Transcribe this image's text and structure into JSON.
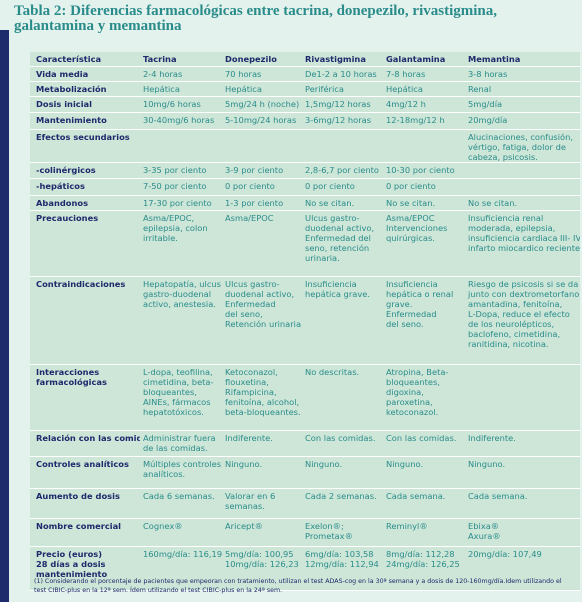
{
  "title": "Tabla 2: Diferencias farmacológicas entre tacrina, donepezilo, rivastigmina, galantamina y memantina",
  "table": {
    "header": [
      "Característica",
      "Tacrina",
      "Donepezilo",
      "Rivastigmina",
      "Galantamina",
      "Memantina"
    ],
    "rows": [
      [
        [
          "Vida media"
        ],
        [
          "2-4 horas"
        ],
        [
          "70 horas"
        ],
        [
          "De1-2 a 10 horas"
        ],
        [
          "7-8 horas"
        ],
        [
          "3-8 horas"
        ]
      ],
      [
        [
          "Metabolización"
        ],
        [
          "Hepática"
        ],
        [
          "Hepática"
        ],
        [
          "Periférica"
        ],
        [
          "Hepática"
        ],
        [
          "Renal"
        ]
      ],
      [
        [
          "Dosis inicial"
        ],
        [
          "10mg/6 horas"
        ],
        [
          "5mg/24 h (noche)"
        ],
        [
          "1,5mg/12 horas"
        ],
        [
          "4mg/12 h"
        ],
        [
          "5mg/día"
        ]
      ],
      [
        [
          "Mantenimiento"
        ],
        [
          "30-40mg/6 horas"
        ],
        [
          "5-10mg/24 horas"
        ],
        [
          "3-6mg/12 horas"
        ],
        [
          "12-18mg/12 h"
        ],
        [
          "20mg/día"
        ]
      ],
      [
        [
          "Efectos secundarios"
        ],
        [],
        [],
        [],
        [],
        [
          "Alucinaciones, confusión,",
          "vértigo, fatiga, dolor de",
          "cabeza, psicosis."
        ]
      ],
      [
        [
          "-colinérgicos"
        ],
        [
          "3-35 por ciento"
        ],
        [
          "3-9 por ciento"
        ],
        [
          "2,8-6,7 por ciento"
        ],
        [
          "10-30 por ciento"
        ],
        []
      ],
      [
        [
          "-hepáticos"
        ],
        [
          "7-50 por ciento"
        ],
        [
          "0 por ciento"
        ],
        [
          "0 por ciento"
        ],
        [
          "0 por ciento"
        ],
        []
      ],
      [
        [
          "Abandonos"
        ],
        [
          "17-30 por ciento"
        ],
        [
          "1-3 por ciento"
        ],
        [
          "No se citan."
        ],
        [
          "No se citan."
        ],
        [
          "No se citan."
        ]
      ],
      [
        [
          "Precauciones"
        ],
        [
          "Asma/EPOC,",
          "epilepsia, colon",
          "irritable."
        ],
        [
          "Asma/EPOC"
        ],
        [
          "Ulcus gastro-",
          "duodenal activo,",
          "Enfermedad del",
          "seno, retención",
          "urinaria."
        ],
        [
          "Asma/EPOC",
          "Intervenciones",
          "quirúrgicas."
        ],
        [
          "Insuficiencia renal",
          "moderada, epilepsia,",
          "insuficiencia cardiaca III- IV,",
          "infarto miocardico reciente."
        ]
      ],
      [
        [
          "Contraindicaciones"
        ],
        [
          "Hepatopatía, ulcus",
          "gastro-duodenal",
          "activo, anestesia."
        ],
        [
          "Ulcus gastro-",
          "duodenal activo,",
          "Enfermedad",
          "del seno,",
          "Retención urinaria."
        ],
        [
          "Insuficiencia",
          "hepática grave."
        ],
        [
          "Insuficiencia",
          "hepática o renal",
          "grave.",
          "Enfermedad",
          "del seno."
        ],
        [
          "Riesgo de psicosis si se da",
          "junto con dextrometorfano,",
          "amantadina, fenitoína,",
          "L-Dopa, reduce el efecto",
          "de los neurolépticos,",
          "baclofeno, cimetidina,",
          "ranitidina, nicotina."
        ]
      ],
      [
        [
          "Interacciones",
          "farmacológicas"
        ],
        [
          "L-dopa, teofilina,",
          "cimetidina, beta-",
          "bloqueantes,",
          "AINEs, fármacos",
          "hepatotóxicos."
        ],
        [
          "Ketoconazol,",
          "flouxetina,",
          "Rifampicina,",
          "fenitoína, alcohol,",
          "beta-bloqueantes."
        ],
        [
          "No descritas."
        ],
        [
          "Atropina, Beta-",
          "bloqueantes,",
          "digoxina,",
          "paroxetina,",
          "ketoconazol."
        ],
        []
      ],
      [
        [
          "Relación con las comidas"
        ],
        [
          "Administrar fuera",
          "de las comidas."
        ],
        [
          "Indiferente."
        ],
        [
          "Con las comidas."
        ],
        [
          "Con las comidas."
        ],
        [
          "Indiferente."
        ]
      ],
      [
        [
          "Controles analíticos"
        ],
        [
          "Múltiples controles",
          "analíticos."
        ],
        [
          "Ninguno."
        ],
        [
          "Ninguno."
        ],
        [
          "Ninguno."
        ],
        [
          "Ninguno."
        ]
      ],
      [
        [
          "Aumento de dosis"
        ],
        [
          "Cada 6 semanas."
        ],
        [
          "Valorar en 6",
          "semanas."
        ],
        [
          "Cada 2 semanas."
        ],
        [
          "Cada semana."
        ],
        [
          "Cada semana."
        ]
      ],
      [
        [
          "Nombre comercial"
        ],
        [
          "Cognex®"
        ],
        [
          "Aricept®"
        ],
        [
          "Exelon®;",
          "Prometax®"
        ],
        [
          "Reminyl®"
        ],
        [
          "Ebixa®",
          "Axura®"
        ]
      ],
      [
        [
          "Precio (euros)",
          "28 días a dosis",
          "mantenimiento"
        ],
        [
          "160mg/día: 116,19"
        ],
        [
          "5mg/día: 100,95",
          "10mg/día: 126,23"
        ],
        [
          "6mg/día: 103,58",
          "12mg/día: 112,94"
        ],
        [
          "8mg/día: 112,28",
          "24mg/día: 126,25"
        ],
        [
          "20mg/día: 107,49"
        ]
      ]
    ]
  },
  "footnote": "(1) Considerando el porcentaje de pacientes que empeoran con tratamiento, utilizan el test ADAS-cog en la 30ª semana y a dosis de 120-160mg/día.Idem utilizando el test CIBIC-plus en la 12ª sem. Ídem utilizando el test CIBIC-plus en la 24ª sem."
}
